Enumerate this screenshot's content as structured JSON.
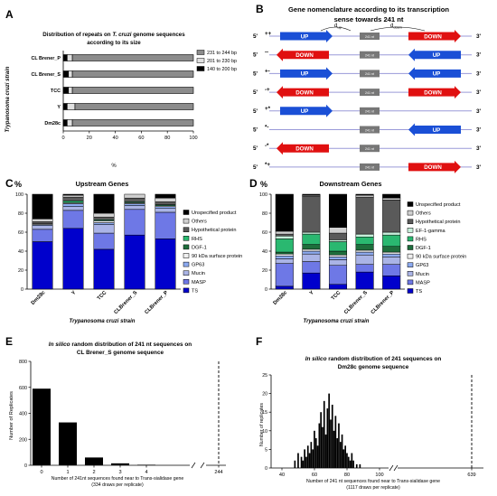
{
  "panelA": {
    "letter": "A",
    "title1": "Distribution of repeats on",
    "title_italic": "T. cruzi",
    "title2": "genome sequences",
    "title3": "according to its size",
    "ylabel": "Trypanosoma cruzi strain",
    "xlabel": "%",
    "legend": [
      {
        "label": "231 to 244 bp",
        "color": "#8c8c8c"
      },
      {
        "label": "201 to 230 bp",
        "color": "#e0e0e0"
      },
      {
        "label": "140 to 200 bp",
        "color": "#000000"
      }
    ],
    "chart_data": {
      "type": "bar",
      "orientation": "horizontal",
      "stacked": true,
      "categories": [
        "CL Brener_P",
        "CL Brener_S",
        "TCC",
        "Y",
        "Dm28c"
      ],
      "series": [
        {
          "name": "140 to 200 bp",
          "values": [
            3,
            4,
            4,
            3,
            3
          ]
        },
        {
          "name": "201 to 230 bp",
          "values": [
            4,
            3,
            3,
            6,
            4
          ]
        },
        {
          "name": "231 to 244 bp",
          "values": [
            93,
            93,
            93,
            91,
            93
          ]
        }
      ],
      "xlim": [
        0,
        100
      ],
      "xticks": [
        "0",
        "20",
        "40",
        "60",
        "80",
        "100"
      ]
    }
  },
  "panelB": {
    "letter": "B",
    "title1": "Gene nomenclature according to its transcription",
    "title2": "sense towards 241 nt",
    "dup": "d",
    "dup_sub": "up",
    "ddown": "d",
    "ddown_sub": "down",
    "prime5": "5'",
    "prime3": "3'",
    "center_label": "241 nt",
    "up_label": "UP",
    "down_label": "DOWN",
    "rows": [
      {
        "code": "++",
        "left": "up-right",
        "right": "down-right"
      },
      {
        "code": "--",
        "left": "down-left",
        "right": "up-left"
      },
      {
        "code": "+-",
        "left": "up-right",
        "right": "up-left"
      },
      {
        "code": "-+",
        "left": "down-left",
        "right": "down-right"
      },
      {
        "code": "+*",
        "left": "up-right",
        "right": ""
      },
      {
        "code": "*-",
        "left": "",
        "right": "up-left"
      },
      {
        "code": "-*",
        "left": "down-left",
        "right": ""
      },
      {
        "code": "*+",
        "left": "",
        "right": "down-right"
      }
    ]
  },
  "panelC": {
    "letter": "C",
    "pct": "%",
    "title": "Upstream Genes",
    "xlabel": "Trypanosoma cruzi strain",
    "chart_data": {
      "type": "bar",
      "stacked": true,
      "categories": [
        "Dm28c",
        "Y",
        "TCC",
        "CLBrener_S",
        "CLBrener_P"
      ],
      "yticks": [
        "0",
        "20",
        "40",
        "60",
        "80",
        "100"
      ],
      "ylim": [
        0,
        100
      ],
      "series": [
        {
          "name": "TS",
          "color": "#0000cc",
          "values": [
            50,
            64,
            42,
            57,
            53
          ]
        },
        {
          "name": "MASP",
          "color": "#6e78e6",
          "values": [
            13,
            19,
            17,
            27,
            28
          ]
        },
        {
          "name": "Mucin",
          "color": "#aab4e6",
          "values": [
            4,
            4,
            9,
            4,
            4
          ]
        },
        {
          "name": "GP63",
          "color": "#8caaf0",
          "values": [
            1,
            3,
            2,
            2,
            2
          ]
        },
        {
          "name": "90 kDa surface protein",
          "color": "#f0f0f0",
          "values": [
            1,
            1,
            2,
            1,
            1
          ]
        },
        {
          "name": "DGF-1",
          "color": "#1e6e3c",
          "values": [
            0,
            0,
            0,
            0,
            0
          ]
        },
        {
          "name": "RHS",
          "color": "#2ab870",
          "values": [
            0,
            2,
            1,
            1,
            1
          ]
        },
        {
          "name": "Hypothetical protein",
          "color": "#5a5a5a",
          "values": [
            2,
            4,
            3,
            4,
            3
          ]
        },
        {
          "name": "Others",
          "color": "#d0d0d0",
          "values": [
            3,
            2,
            4,
            4,
            4
          ]
        },
        {
          "name": "Unspecified product",
          "color": "#000000",
          "values": [
            26,
            1,
            20,
            0,
            4
          ]
        }
      ]
    }
  },
  "panelD": {
    "letter": "D",
    "pct": "%",
    "title": "Downstream Genes",
    "xlabel": "Trypanosoma cruzi strain",
    "chart_data": {
      "type": "bar",
      "stacked": true,
      "categories": [
        "Dm28c",
        "Y",
        "TCC",
        "CLBrener_S",
        "CLBrener_P"
      ],
      "yticks": [
        "0",
        "20",
        "40",
        "60",
        "80",
        "100"
      ],
      "ylim": [
        0,
        100
      ],
      "series": [
        {
          "name": "TS",
          "color": "#0000cc",
          "values": [
            3,
            17,
            5,
            18,
            14
          ]
        },
        {
          "name": "MASP",
          "color": "#6e78e6",
          "values": [
            24,
            12,
            20,
            8,
            12
          ]
        },
        {
          "name": "Mucin",
          "color": "#aab4e6",
          "values": [
            5,
            8,
            6,
            10,
            8
          ]
        },
        {
          "name": "GP63",
          "color": "#8caaf0",
          "values": [
            3,
            3,
            3,
            3,
            3
          ]
        },
        {
          "name": "90 kDa surface protein",
          "color": "#f0f0f0",
          "values": [
            2,
            2,
            2,
            2,
            2
          ]
        },
        {
          "name": "DGF-1",
          "color": "#1e6e3c",
          "values": [
            2,
            5,
            4,
            6,
            6
          ]
        },
        {
          "name": "RHS",
          "color": "#2ab870",
          "values": [
            14,
            11,
            10,
            8,
            12
          ]
        },
        {
          "name": "EF-1-gamma",
          "color": "#c8f0dc",
          "values": [
            3,
            2,
            2,
            3,
            3
          ]
        },
        {
          "name": "Hypothetical protein",
          "color": "#5a5a5a",
          "values": [
            2,
            38,
            7,
            39,
            34
          ]
        },
        {
          "name": "Others",
          "color": "#d0d0d0",
          "values": [
            3,
            1,
            6,
            2,
            2
          ]
        },
        {
          "name": "Unspecified product",
          "color": "#000000",
          "values": [
            39,
            1,
            35,
            1,
            4
          ]
        }
      ]
    }
  },
  "panelE": {
    "letter": "E",
    "title_italic": "In silico",
    "title_rest": "random distribution of 241 nt sequences on",
    "title2": "CL Brener_S genome sequence",
    "ylabel": "Number of Replicates",
    "xlabel1": "Number of 241nt sequences found near to Trans-sialidase gene",
    "xlabel2": "(334 draws per replicate)",
    "chart_data": {
      "type": "bar",
      "categories": [
        "0",
        "1",
        "2",
        "3",
        "4",
        "244"
      ],
      "values": [
        590,
        330,
        60,
        15,
        4,
        0
      ],
      "observed": "244",
      "yticks": [
        "0",
        "200",
        "400",
        "600",
        "800"
      ],
      "ylim": [
        0,
        800
      ]
    }
  },
  "panelF": {
    "letter": "F",
    "title_italic": "In silico",
    "title_rest": "random distribution of 241 sequences on",
    "title2": "Dm28c genome sequence",
    "ylabel": "Number of replicates",
    "xlabel1": "Number of 241 nt sequences found near to Trans-sialidase gene",
    "xlabel2": "(1117 draws per replicate)",
    "chart_data": {
      "type": "bar",
      "x": [
        48,
        50,
        52,
        53,
        54,
        55,
        56,
        57,
        58,
        59,
        60,
        61,
        62,
        63,
        64,
        65,
        66,
        67,
        68,
        69,
        70,
        71,
        72,
        73,
        74,
        75,
        76,
        77,
        78,
        79,
        80,
        81,
        82,
        83,
        84,
        86,
        88
      ],
      "values": [
        2,
        4,
        3,
        2,
        5,
        3,
        6,
        4,
        7,
        5,
        10,
        8,
        6,
        12,
        15,
        11,
        18,
        9,
        16,
        20,
        13,
        17,
        10,
        14,
        8,
        12,
        7,
        9,
        5,
        6,
        4,
        3,
        2,
        4,
        2,
        1,
        1
      ],
      "xticks": [
        "40",
        "60",
        "80",
        "100",
        "639"
      ],
      "yticks": [
        "0",
        "5",
        "10",
        "15",
        "20",
        "25"
      ],
      "ylim": [
        0,
        25
      ],
      "observed": "639"
    }
  }
}
